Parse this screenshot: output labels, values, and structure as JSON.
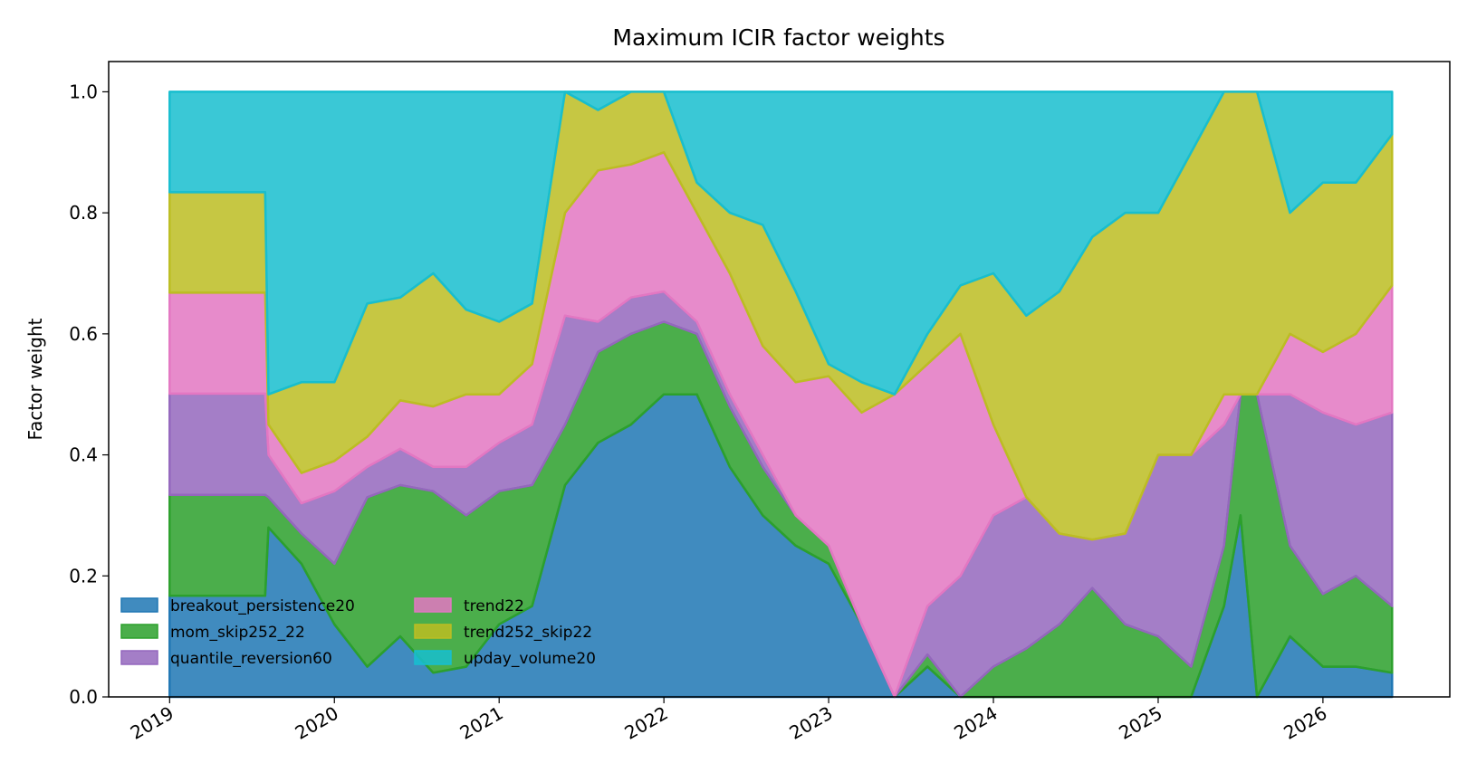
{
  "chart_data": {
    "type": "area",
    "stacked": true,
    "title": "Maximum ICIR factor weights",
    "xlabel": "",
    "ylabel": "Factor weight",
    "xlim": [
      2018.63,
      2026.77
    ],
    "ylim": [
      0.0,
      1.05
    ],
    "y_ticks": [
      "0.0",
      "0.2",
      "0.4",
      "0.6",
      "0.8",
      "1.0"
    ],
    "x_ticks": [
      "2019",
      "2020",
      "2021",
      "2022",
      "2023",
      "2024",
      "2025",
      "2026"
    ],
    "legend_location": "lower-left",
    "grid": false,
    "x": [
      2019.0,
      2019.58,
      2019.6,
      2019.8,
      2020.0,
      2020.2,
      2020.4,
      2020.6,
      2020.8,
      2021.0,
      2021.2,
      2021.4,
      2021.6,
      2021.8,
      2022.0,
      2022.2,
      2022.4,
      2022.6,
      2022.8,
      2023.0,
      2023.2,
      2023.4,
      2023.6,
      2023.8,
      2024.0,
      2024.2,
      2024.4,
      2024.6,
      2024.8,
      2025.0,
      2025.2,
      2025.4,
      2025.5,
      2025.6,
      2025.8,
      2026.0,
      2026.2,
      2026.42
    ],
    "series": [
      {
        "name": "breakout_persistence20",
        "color": "#1f77b4",
        "values": [
          0.167,
          0.167,
          0.28,
          0.22,
          0.12,
          0.05,
          0.1,
          0.04,
          0.05,
          0.12,
          0.15,
          0.35,
          0.42,
          0.45,
          0.5,
          0.5,
          0.38,
          0.3,
          0.25,
          0.22,
          0.12,
          0.0,
          0.05,
          0.0,
          0.0,
          0.0,
          0.0,
          0.0,
          0.0,
          0.0,
          0.0,
          0.15,
          0.3,
          0.0,
          0.1,
          0.05,
          0.05,
          0.04
        ]
      },
      {
        "name": "mom_skip252_22",
        "color": "#2ca02c",
        "values": [
          0.167,
          0.167,
          0.05,
          0.05,
          0.1,
          0.28,
          0.25,
          0.3,
          0.25,
          0.22,
          0.2,
          0.1,
          0.15,
          0.15,
          0.12,
          0.1,
          0.1,
          0.08,
          0.05,
          0.03,
          0.0,
          0.0,
          0.02,
          0.0,
          0.05,
          0.08,
          0.12,
          0.18,
          0.12,
          0.1,
          0.05,
          0.1,
          0.2,
          0.5,
          0.15,
          0.12,
          0.15,
          0.11
        ]
      },
      {
        "name": "quantile_reversion60",
        "color": "#9467bd",
        "values": [
          0.167,
          0.167,
          0.07,
          0.05,
          0.12,
          0.05,
          0.06,
          0.04,
          0.08,
          0.08,
          0.1,
          0.18,
          0.05,
          0.06,
          0.05,
          0.02,
          0.02,
          0.02,
          0.0,
          0.0,
          0.0,
          0.0,
          0.08,
          0.2,
          0.25,
          0.25,
          0.15,
          0.08,
          0.15,
          0.3,
          0.35,
          0.2,
          0.0,
          0.0,
          0.25,
          0.3,
          0.25,
          0.32
        ]
      },
      {
        "name": "trend22",
        "color": "#e377c2",
        "values": [
          0.167,
          0.167,
          0.05,
          0.05,
          0.05,
          0.05,
          0.08,
          0.1,
          0.12,
          0.08,
          0.1,
          0.17,
          0.25,
          0.22,
          0.23,
          0.18,
          0.2,
          0.18,
          0.22,
          0.28,
          0.35,
          0.5,
          0.4,
          0.4,
          0.15,
          0.0,
          0.0,
          0.0,
          0.0,
          0.0,
          0.0,
          0.05,
          0.0,
          0.0,
          0.1,
          0.1,
          0.15,
          0.21
        ]
      },
      {
        "name": "trend252_skip22",
        "color": "#bcbd22",
        "values": [
          0.166,
          0.166,
          0.05,
          0.15,
          0.13,
          0.22,
          0.17,
          0.22,
          0.14,
          0.12,
          0.1,
          0.2,
          0.1,
          0.12,
          0.1,
          0.05,
          0.1,
          0.2,
          0.15,
          0.02,
          0.05,
          0.0,
          0.05,
          0.08,
          0.25,
          0.3,
          0.4,
          0.5,
          0.53,
          0.4,
          0.5,
          0.5,
          0.5,
          0.5,
          0.2,
          0.28,
          0.25,
          0.25
        ]
      },
      {
        "name": "upday_volume20",
        "color": "#17becf",
        "values": [
          0.166,
          0.166,
          0.5,
          0.48,
          0.48,
          0.35,
          0.34,
          0.3,
          0.36,
          0.38,
          0.35,
          0.0,
          0.03,
          0.0,
          0.0,
          0.15,
          0.2,
          0.22,
          0.33,
          0.45,
          0.48,
          0.5,
          0.4,
          0.32,
          0.3,
          0.37,
          0.33,
          0.24,
          0.2,
          0.2,
          0.1,
          0.0,
          0.0,
          0.0,
          0.2,
          0.15,
          0.15,
          0.07
        ]
      }
    ]
  }
}
